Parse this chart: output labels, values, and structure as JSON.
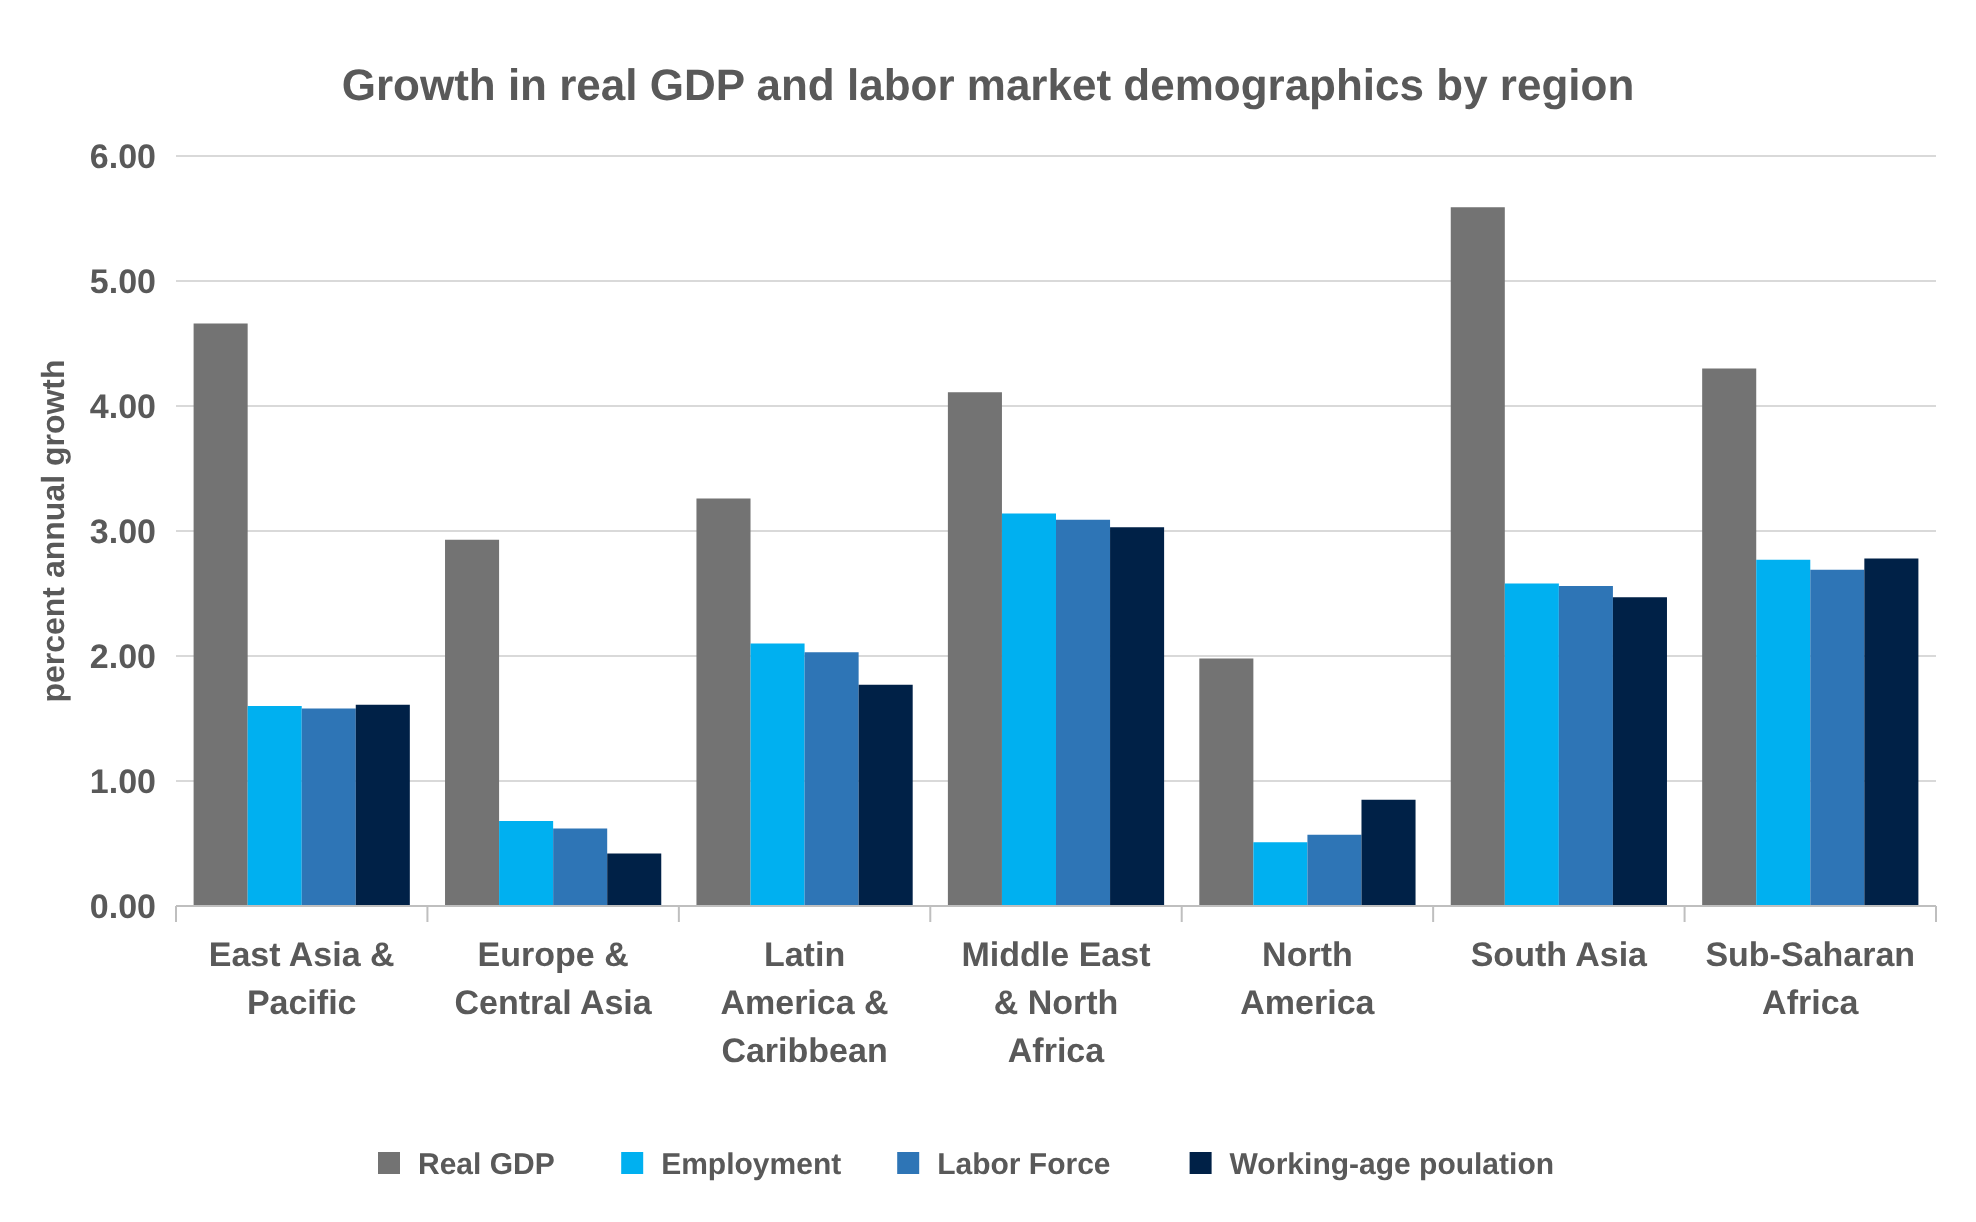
{
  "chart_data": {
    "type": "bar",
    "title": "Growth in real GDP and labor market demographics by region",
    "ylabel": "percent annual growth",
    "categories": [
      "East Asia & Pacific",
      "Europe & Central Asia",
      "Latin America & Caribbean",
      "Middle East & North Africa",
      "North America",
      "South Asia",
      "Sub-Saharan Africa"
    ],
    "series": [
      {
        "name": "Real GDP",
        "color": "#737373",
        "values": [
          4.66,
          2.93,
          3.26,
          4.11,
          1.98,
          5.59,
          4.3
        ]
      },
      {
        "name": "Employment",
        "color": "#00b0f0",
        "values": [
          1.6,
          0.68,
          2.1,
          3.14,
          0.51,
          2.58,
          2.77
        ]
      },
      {
        "name": "Labor Force",
        "color": "#2e75b6",
        "values": [
          1.58,
          0.62,
          2.03,
          3.09,
          0.57,
          2.56,
          2.69
        ]
      },
      {
        "name": "Working-age poulation",
        "color": "#002147",
        "values": [
          1.61,
          0.42,
          1.77,
          3.03,
          0.85,
          2.47,
          2.78
        ]
      }
    ],
    "ylim": [
      0,
      6
    ],
    "yticks": [
      {
        "value": 0,
        "label": "0.00"
      },
      {
        "value": 1,
        "label": "1.00"
      },
      {
        "value": 2,
        "label": "2.00"
      },
      {
        "value": 3,
        "label": "3.00"
      },
      {
        "value": 4,
        "label": "4.00"
      },
      {
        "value": 5,
        "label": "5.00"
      },
      {
        "value": 6,
        "label": "6.00"
      }
    ],
    "grid": "y",
    "legend": "bottom"
  }
}
